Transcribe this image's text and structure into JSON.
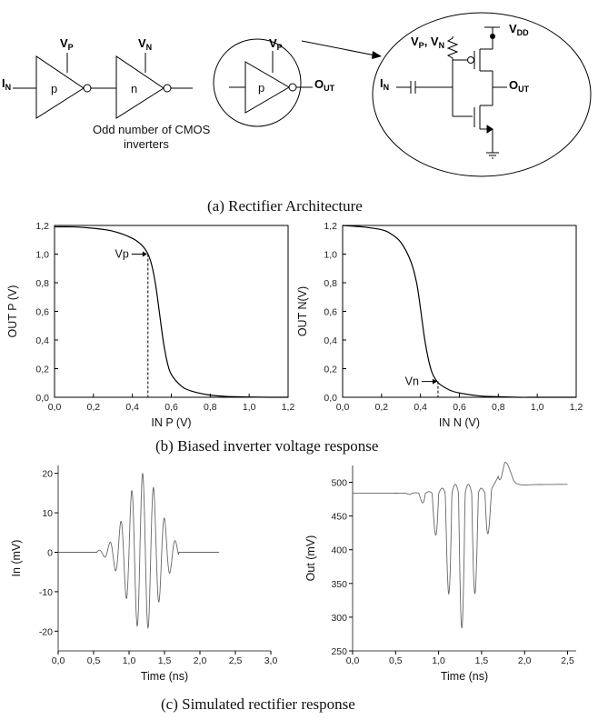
{
  "diagram": {
    "in_main": "I",
    "in_sub": "N",
    "vp_main": "V",
    "vp_sub": "P",
    "vn_main": "V",
    "vn_sub": "N",
    "p_label": "p",
    "n_label": "n",
    "out_main": "O",
    "out_sub": "UT",
    "vdd_main": "V",
    "vdd_sub": "DD",
    "vpvn_text": "V",
    "vpvn_sub1": "P",
    "vpvn_mid": ", V",
    "vpvn_sub2": "N",
    "note_line1": "Odd number of CMOS",
    "note_line2": "inverters"
  },
  "captions": {
    "a": "(a) Rectifier Architecture",
    "b": "(b) Biased inverter voltage response",
    "c": "(c) Simulated rectifier response"
  },
  "chart_data": [
    {
      "type": "line",
      "xlabel": "IN P (V)",
      "ylabel": "OUT P (V)",
      "xlim": [
        0,
        1.2
      ],
      "ylim": [
        0,
        1.2
      ],
      "xticks": [
        "0,0",
        "0,2",
        "0,4",
        "0,6",
        "0,8",
        "1,0",
        "1,2"
      ],
      "yticks": [
        "0,0",
        "0,2",
        "0,4",
        "0,6",
        "0,8",
        "1,0",
        "1,2"
      ],
      "x": [
        0.0,
        0.1,
        0.2,
        0.3,
        0.4,
        0.45,
        0.48,
        0.5,
        0.52,
        0.54,
        0.56,
        0.58,
        0.6,
        0.65,
        0.7,
        0.8,
        0.9,
        1.0,
        1.1,
        1.2
      ],
      "y": [
        1.19,
        1.19,
        1.18,
        1.16,
        1.11,
        1.06,
        1.0,
        0.92,
        0.78,
        0.58,
        0.38,
        0.24,
        0.16,
        0.08,
        0.045,
        0.015,
        0.005,
        0.002,
        0.0,
        0.0
      ],
      "annotation": {
        "text": "Vp",
        "x": 0.48,
        "y": 1.0
      }
    },
    {
      "type": "line",
      "xlabel": "IN N (V)",
      "ylabel": "OUT N(V)",
      "xlim": [
        0,
        1.2
      ],
      "ylim": [
        0,
        1.2
      ],
      "xticks": [
        "0,0",
        "0,2",
        "0,4",
        "0,6",
        "0,8",
        "1,0",
        "1,2"
      ],
      "yticks": [
        "0,0",
        "0,2",
        "0,4",
        "0,6",
        "0,8",
        "1,0",
        "1,2"
      ],
      "x": [
        0.0,
        0.1,
        0.2,
        0.25,
        0.3,
        0.35,
        0.38,
        0.4,
        0.42,
        0.44,
        0.46,
        0.48,
        0.5,
        0.55,
        0.6,
        0.7,
        0.8,
        0.9,
        1.0,
        1.2
      ],
      "y": [
        1.2,
        1.19,
        1.17,
        1.14,
        1.08,
        0.95,
        0.8,
        0.62,
        0.42,
        0.27,
        0.17,
        0.12,
        0.09,
        0.05,
        0.03,
        0.01,
        0.004,
        0.0,
        0.0,
        0.0
      ],
      "annotation": {
        "text": "Vn",
        "x": 0.49,
        "y": 0.11
      }
    },
    {
      "type": "line",
      "xlabel": "Time (ns)",
      "ylabel": "In (mV)",
      "xlim": [
        0,
        3.0
      ],
      "ylim": [
        -25,
        22
      ],
      "xticks": [
        "0,0",
        "0,5",
        "1,0",
        "1,5",
        "2,0",
        "2,5",
        "3,0"
      ],
      "yticks": [
        "-20",
        "-10",
        "0",
        "10",
        "20"
      ],
      "ytick_values": [
        -20,
        -10,
        0,
        10,
        20
      ],
      "signal": {
        "center": 1.2,
        "freq": 6.5,
        "sigma": 0.23,
        "amplitude": 20,
        "start": 0.55,
        "end": 1.7,
        "x_end": 2.27
      }
    },
    {
      "type": "line",
      "xlabel": "Time (ns)",
      "ylabel": "Out (mV)",
      "xlim": [
        0,
        2.6
      ],
      "ylim": [
        250,
        525
      ],
      "xticks": [
        "0,0",
        "0,5",
        "1,0",
        "1,5",
        "2,0",
        "2,5"
      ],
      "yticks": [
        "250",
        "300",
        "350",
        "400",
        "450",
        "500"
      ],
      "ytick_values": [
        250,
        300,
        350,
        400,
        450,
        500
      ],
      "signal": {
        "baseline": 484,
        "center": 1.27,
        "freq": 6.5,
        "sigma": 0.2,
        "amplitude": 200,
        "overshoot": 36,
        "settle": 497,
        "x_end": 2.5
      }
    }
  ]
}
